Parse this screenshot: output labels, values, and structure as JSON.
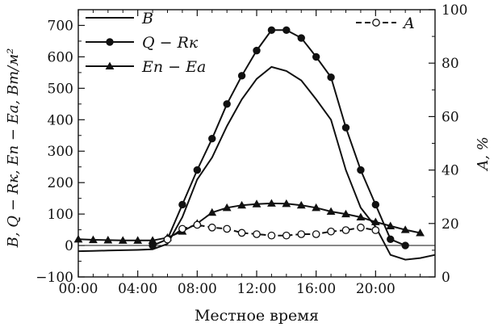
{
  "chart_data": {
    "type": "line",
    "xlabel": "Местное время",
    "ylabel": "B, Q − Rк, Eп − Eа, Вт/м²",
    "ylabel_right": "A, %",
    "xlim": [
      0,
      24
    ],
    "ylim": [
      -100,
      750
    ],
    "ylim_right": [
      0,
      100
    ],
    "x_ticks": [
      0,
      4,
      8,
      12,
      16,
      20
    ],
    "x_tick_labels": [
      "00:00",
      "04:00",
      "08:00",
      "12:00",
      "16:00",
      "20:00"
    ],
    "y_ticks": [
      -100,
      0,
      100,
      200,
      300,
      400,
      500,
      600,
      700
    ],
    "y_tick_labels": [
      "−100",
      "0",
      "100",
      "200",
      "300",
      "400",
      "500",
      "600",
      "700"
    ],
    "y_ticks_right": [
      0,
      20,
      40,
      60,
      80,
      100
    ],
    "y_tick_labels_right": [
      "0",
      "20",
      "40",
      "60",
      "80",
      "100"
    ],
    "grid": false,
    "series": [
      {
        "name": "B",
        "axis": "left",
        "style": "solid",
        "marker": "none",
        "x": [
          0,
          1,
          2,
          3,
          4,
          5,
          6,
          7,
          8,
          9,
          10,
          11,
          12,
          13,
          14,
          15,
          16,
          17,
          18,
          19,
          20,
          21,
          22,
          23,
          24
        ],
        "values": [
          -18,
          -17,
          -16,
          -15,
          -14,
          -12,
          5,
          90,
          210,
          280,
          380,
          465,
          530,
          568,
          555,
          525,
          465,
          400,
          240,
          120,
          60,
          -30,
          -45,
          -40,
          -30
        ]
      },
      {
        "name": "Q − Rк",
        "axis": "left",
        "style": "solid",
        "marker": "filled-circle",
        "x": [
          5,
          6,
          7,
          8,
          9,
          10,
          11,
          12,
          13,
          14,
          15,
          16,
          17,
          18,
          19,
          20,
          21,
          22
        ],
        "values": [
          0,
          20,
          130,
          240,
          340,
          450,
          540,
          620,
          685,
          685,
          660,
          600,
          535,
          375,
          240,
          130,
          20,
          0
        ]
      },
      {
        "name": "Eп − Eа",
        "axis": "left",
        "style": "solid",
        "marker": "filled-triangle",
        "x": [
          0,
          1,
          2,
          3,
          4,
          5,
          6,
          7,
          8,
          9,
          10,
          11,
          12,
          13,
          14,
          15,
          16,
          17,
          18,
          19,
          20,
          21,
          22,
          23
        ],
        "values": [
          20,
          18,
          17,
          16,
          16,
          16,
          25,
          45,
          70,
          105,
          120,
          128,
          132,
          134,
          133,
          128,
          120,
          108,
          100,
          90,
          75,
          62,
          50,
          40
        ]
      },
      {
        "name": "A",
        "axis": "right",
        "style": "dashed",
        "marker": "open-circle",
        "x": [
          6,
          7,
          8,
          9,
          10,
          11,
          12,
          13,
          14,
          15,
          16,
          17,
          18,
          19,
          20
        ],
        "values": [
          14,
          18,
          19.5,
          18.5,
          18,
          16.5,
          16,
          15.5,
          15.5,
          16,
          16,
          17,
          17.5,
          18.5,
          17.5
        ]
      }
    ],
    "legend": {
      "placement_left": "top-left",
      "placement_right": "top-right",
      "entries_left": [
        "B",
        "Q − Rк",
        "Eп − Eа"
      ],
      "entries_right": [
        "A"
      ]
    }
  }
}
